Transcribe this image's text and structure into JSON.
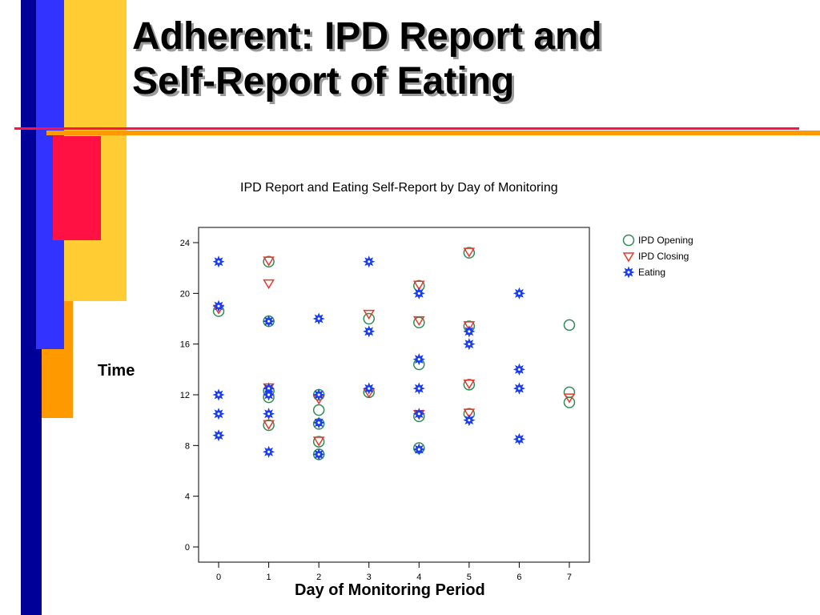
{
  "slide": {
    "title_line1": "Adherent: IPD Report and",
    "title_line2": "Self-Report of Eating"
  },
  "colors": {
    "deco_blue": "#3333ff",
    "deco_navy": "#000099",
    "deco_yellow": "#ffcc33",
    "deco_orange": "#ff9900",
    "deco_red": "#ff1144",
    "opening": "#2e8b57",
    "closing": "#e83a2a",
    "eating": "#1a3cf0"
  },
  "chart_data": {
    "type": "scatter",
    "title": "IPD Report and Eating Self-Report by Day of Monitoring",
    "xlabel": "Day of Monitoring Period",
    "ylabel": "Time",
    "xlim": [
      -0.4,
      7.4
    ],
    "ylim": [
      -1.2,
      25.2
    ],
    "x_ticks": [
      "0",
      "1",
      "2",
      "3",
      "4",
      "5",
      "6",
      "7"
    ],
    "y_ticks": [
      "0",
      "4",
      "8",
      "12",
      "16",
      "20",
      "24"
    ],
    "legend_position": "top-right",
    "series": [
      {
        "name": "IPD Opening",
        "marker": "circle",
        "points": [
          [
            0,
            18.6
          ],
          [
            1,
            22.5
          ],
          [
            1,
            17.8
          ],
          [
            1,
            12.3
          ],
          [
            1,
            11.8
          ],
          [
            1,
            9.6
          ],
          [
            2,
            12.0
          ],
          [
            2,
            10.8
          ],
          [
            2,
            9.7
          ],
          [
            2,
            8.3
          ],
          [
            2,
            7.3
          ],
          [
            3,
            18.0
          ],
          [
            3,
            12.2
          ],
          [
            4,
            20.6
          ],
          [
            4,
            17.7
          ],
          [
            4,
            14.4
          ],
          [
            4,
            10.3
          ],
          [
            4,
            7.8
          ],
          [
            5,
            23.2
          ],
          [
            5,
            17.4
          ],
          [
            5,
            12.8
          ],
          [
            5,
            10.5
          ],
          [
            7,
            17.5
          ],
          [
            7,
            12.2
          ],
          [
            7,
            11.4
          ]
        ]
      },
      {
        "name": "IPD Closing",
        "marker": "triangle-down",
        "points": [
          [
            0,
            18.8
          ],
          [
            1,
            22.6
          ],
          [
            1,
            20.8
          ],
          [
            1,
            12.6
          ],
          [
            1,
            9.7
          ],
          [
            2,
            11.7
          ],
          [
            2,
            8.4
          ],
          [
            3,
            18.4
          ],
          [
            3,
            12.2
          ],
          [
            4,
            20.7
          ],
          [
            4,
            17.9
          ],
          [
            4,
            10.5
          ],
          [
            5,
            23.3
          ],
          [
            5,
            17.5
          ],
          [
            5,
            12.9
          ],
          [
            5,
            10.6
          ],
          [
            7,
            11.8
          ]
        ]
      },
      {
        "name": "Eating",
        "marker": "star",
        "points": [
          [
            0,
            22.5
          ],
          [
            0,
            19.0
          ],
          [
            0,
            12.0
          ],
          [
            0,
            10.5
          ],
          [
            0,
            8.8
          ],
          [
            1,
            17.8
          ],
          [
            1,
            12.5
          ],
          [
            1,
            12.0
          ],
          [
            1,
            10.5
          ],
          [
            1,
            7.5
          ],
          [
            2,
            18.0
          ],
          [
            2,
            12.0
          ],
          [
            2,
            9.8
          ],
          [
            2,
            7.3
          ],
          [
            3,
            22.5
          ],
          [
            3,
            17.0
          ],
          [
            3,
            12.5
          ],
          [
            4,
            20.0
          ],
          [
            4,
            14.8
          ],
          [
            4,
            12.5
          ],
          [
            4,
            10.5
          ],
          [
            4,
            7.7
          ],
          [
            5,
            17.0
          ],
          [
            5,
            16.0
          ],
          [
            5,
            10.0
          ],
          [
            6,
            20.0
          ],
          [
            6,
            14.0
          ],
          [
            6,
            12.5
          ],
          [
            6,
            8.5
          ]
        ]
      }
    ]
  }
}
